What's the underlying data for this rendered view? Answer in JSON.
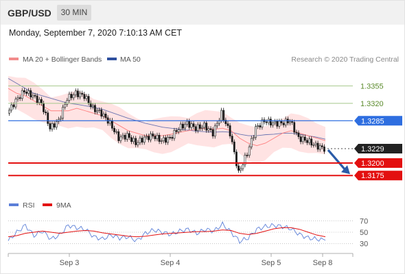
{
  "header": {
    "pair": "GBP/USD",
    "timeframe": "30 MIN",
    "datetime": "Monday, September 7, 2020 7:10:13 AM CET"
  },
  "colors": {
    "price_candle": "#1a1a1a",
    "ma20": "#ff7f7f",
    "bollinger_fill": "#ffd9d9",
    "ma50": "#4d5fa8",
    "support_line": "#e31010",
    "resistance_line_green": "#a4c88a",
    "pivot_line": "#2e6ee0",
    "rsi": "#5b7fd8",
    "rsi_ma": "#e31010",
    "arrow": "#2a5ba8"
  },
  "chart_data": [
    {
      "type": "line",
      "title": "",
      "legend": [
        {
          "name": "MA 20 + Bollinger Bands",
          "color": "#f28b8b"
        },
        {
          "name": "MA 50",
          "color": "#2e4f9e"
        }
      ],
      "source": "Research © 2020 Trading Central",
      "x_ticks": [
        "Sep 3",
        "Sep 4",
        "Sep 5",
        "Sep 8"
      ],
      "ylim": [
        1.3145,
        1.339
      ],
      "series": [
        {
          "name": "Price",
          "values": [
            1.33,
            1.3325,
            1.3345,
            1.3335,
            1.332,
            1.327,
            1.3285,
            1.333,
            1.334,
            1.3335,
            1.331,
            1.33,
            1.328,
            1.325,
            1.3255,
            1.324,
            1.325,
            1.3255,
            1.3245,
            1.325,
            1.327,
            1.328,
            1.327,
            1.3275,
            1.326,
            1.33,
            1.326,
            1.318,
            1.322,
            1.327,
            1.3285,
            1.328,
            1.328,
            1.3285,
            1.325,
            1.3245,
            1.3235,
            1.3229
          ]
        },
        {
          "name": "MA 20",
          "values": [
            1.335,
            1.334,
            1.3335,
            1.3325,
            1.3315,
            1.3305,
            1.3305,
            1.3305,
            1.331,
            1.3305,
            1.33,
            1.3295,
            1.3285,
            1.3275,
            1.3265,
            1.326,
            1.3255,
            1.3255,
            1.3255,
            1.3258,
            1.3262,
            1.3265,
            1.3268,
            1.327,
            1.3268,
            1.327,
            1.3265,
            1.325,
            1.324,
            1.3235,
            1.324,
            1.325,
            1.326,
            1.3265,
            1.326,
            1.3255,
            1.325,
            1.3245
          ]
        },
        {
          "name": "MA 50",
          "values": [
            1.337,
            1.336,
            1.335,
            1.334,
            1.3335,
            1.333,
            1.3325,
            1.332,
            1.3318,
            1.3315,
            1.3312,
            1.3308,
            1.3302,
            1.3296,
            1.329,
            1.3285,
            1.328,
            1.3276,
            1.3272,
            1.327,
            1.3268,
            1.3266,
            1.3264,
            1.3263,
            1.3262,
            1.3263,
            1.3262,
            1.3258,
            1.3255,
            1.3255,
            1.3257,
            1.3258,
            1.326,
            1.326,
            1.3258,
            1.3255,
            1.3252,
            1.3248
          ]
        }
      ],
      "levels": [
        {
          "value": 1.3355,
          "label": "1.3355",
          "kind": "resistance"
        },
        {
          "value": 1.332,
          "label": "1.3320",
          "kind": "resistance"
        },
        {
          "value": 1.3285,
          "label": "1.3285",
          "kind": "pivot"
        },
        {
          "value": 1.3229,
          "label": "1.3229",
          "kind": "last"
        },
        {
          "value": 1.32,
          "label": "1.3200",
          "kind": "support"
        },
        {
          "value": 1.3175,
          "label": "1.3175",
          "kind": "support"
        }
      ]
    },
    {
      "type": "line",
      "title": "",
      "legend": [
        {
          "name": "RSI",
          "color": "#5b7fd8"
        },
        {
          "name": "9MA",
          "color": "#e31010"
        }
      ],
      "ylim": [
        20,
        80
      ],
      "y_ticks": [
        30,
        50,
        70
      ],
      "series": [
        {
          "name": "RSI",
          "values": [
            35,
            50,
            62,
            44,
            52,
            38,
            45,
            62,
            58,
            55,
            42,
            38,
            45,
            40,
            42,
            35,
            48,
            54,
            50,
            46,
            52,
            55,
            48,
            55,
            52,
            64,
            50,
            34,
            40,
            55,
            60,
            62,
            60,
            56,
            46,
            40,
            38,
            36
          ]
        },
        {
          "name": "9MA",
          "values": [
            42,
            44,
            48,
            50,
            52,
            50,
            48,
            50,
            52,
            53,
            52,
            49,
            47,
            45,
            43,
            42,
            43,
            45,
            47,
            48,
            49,
            50,
            51,
            51,
            52,
            54,
            53,
            48,
            46,
            48,
            52,
            56,
            58,
            58,
            55,
            50,
            45,
            42
          ]
        }
      ]
    }
  ]
}
